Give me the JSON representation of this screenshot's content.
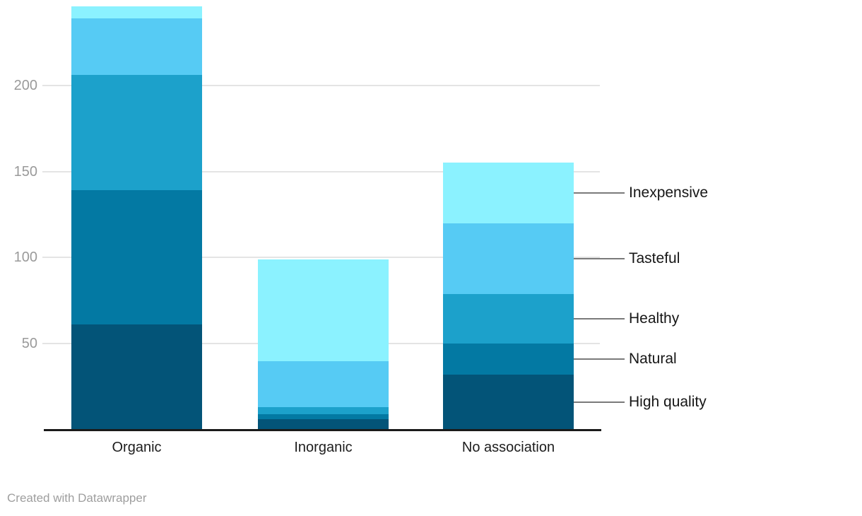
{
  "footer": {
    "credit": "Created with Datawrapper"
  },
  "chart_data": {
    "type": "bar",
    "stacked": true,
    "title": "",
    "xlabel": "",
    "ylabel": "",
    "categories": [
      "Organic",
      "Inorganic",
      "No association"
    ],
    "series": [
      {
        "name": "High quality",
        "color": "#035478",
        "values": [
          61,
          6,
          32
        ]
      },
      {
        "name": "Natural",
        "color": "#0379A3",
        "values": [
          78,
          3,
          18
        ]
      },
      {
        "name": "Healthy",
        "color": "#1CA1CB",
        "values": [
          67,
          4,
          29
        ]
      },
      {
        "name": "Tasteful",
        "color": "#56CBF4",
        "values": [
          33,
          27,
          41
        ]
      },
      {
        "name": "Inexpensive",
        "color": "#8BF2FF",
        "values": [
          7,
          59,
          35
        ]
      }
    ],
    "totals": [
      246,
      99,
      155
    ],
    "y_ticks": [
      50,
      100,
      150,
      200
    ],
    "ylim": [
      0,
      252
    ],
    "grid": true,
    "legend_position": "right-direct-labels",
    "colors": {
      "gridline": "#e4e4e4",
      "axis": "#1a1a1a",
      "tick_label": "#9a9a9a",
      "category_label": "#1d1d1d",
      "series_label": "#161616",
      "leader_line": "#7a7a7a",
      "credit": "#9e9e9e"
    }
  }
}
